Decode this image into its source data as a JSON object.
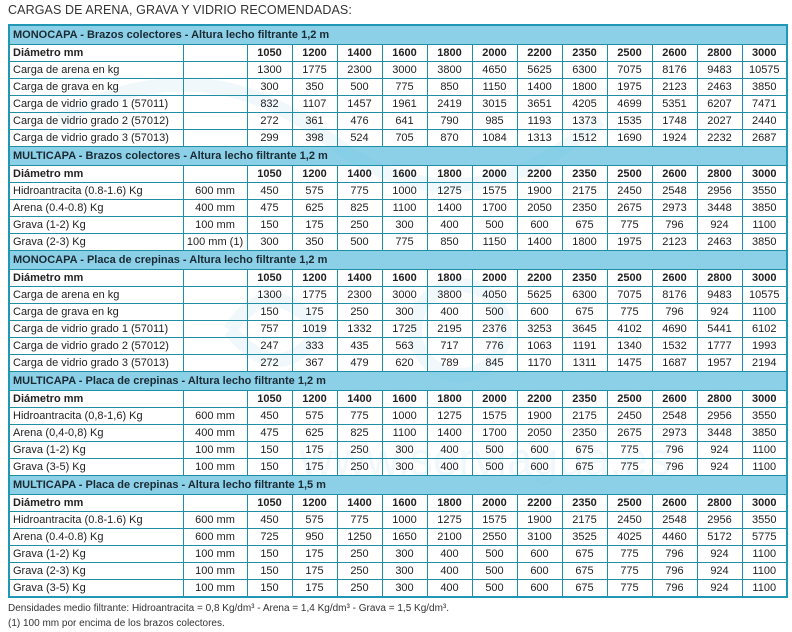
{
  "title": "CARGAS DE ARENA, GRAVA Y VIDRIO RECOMENDADAS:",
  "diameter_label": "Diámetro mm",
  "diameters": [
    "1050",
    "1200",
    "1400",
    "1600",
    "1800",
    "2000",
    "2200",
    "2350",
    "2500",
    "2600",
    "2800",
    "3000"
  ],
  "sections": [
    {
      "header": "MONOCAPA - Brazos colectores - Altura lecho filtrante 1,2 m",
      "rows": [
        {
          "label": "Carga de arena en kg",
          "sub": "",
          "values": [
            "1300",
            "1775",
            "2300",
            "3000",
            "3800",
            "4650",
            "5625",
            "6300",
            "7075",
            "8176",
            "9483",
            "10575"
          ]
        },
        {
          "label": "Carga de grava en kg",
          "sub": "",
          "values": [
            "300",
            "350",
            "500",
            "775",
            "850",
            "1150",
            "1400",
            "1800",
            "1975",
            "2123",
            "2463",
            "3850"
          ]
        },
        {
          "label": "Carga de vidrio grado 1 (57011)",
          "sub": "",
          "values": [
            "832",
            "1107",
            "1457",
            "1961",
            "2419",
            "3015",
            "3651",
            "4205",
            "4699",
            "5351",
            "6207",
            "7471"
          ]
        },
        {
          "label": "Carga de vidrio grado 2 (57012)",
          "sub": "",
          "values": [
            "272",
            "361",
            "476",
            "641",
            "790",
            "985",
            "1193",
            "1373",
            "1535",
            "1748",
            "2027",
            "2440"
          ]
        },
        {
          "label": "Carga de vidrio grado 3 (57013)",
          "sub": "",
          "values": [
            "299",
            "398",
            "524",
            "705",
            "870",
            "1084",
            "1313",
            "1512",
            "1690",
            "1924",
            "2232",
            "2687"
          ]
        }
      ]
    },
    {
      "header": "MULTICAPA - Brazos colectores - Altura lecho filtrante 1,2 m",
      "rows": [
        {
          "label": "Hidroantracita (0.8-1.6) Kg",
          "sub": "600 mm",
          "values": [
            "450",
            "575",
            "775",
            "1000",
            "1275",
            "1575",
            "1900",
            "2175",
            "2450",
            "2548",
            "2956",
            "3550"
          ]
        },
        {
          "label": "Arena (0.4-0.8) Kg",
          "sub": "400 mm",
          "values": [
            "475",
            "625",
            "825",
            "1100",
            "1400",
            "1700",
            "2050",
            "2350",
            "2675",
            "2973",
            "3448",
            "3850"
          ]
        },
        {
          "label": "Grava (1-2) Kg",
          "sub": "100 mm",
          "values": [
            "150",
            "175",
            "250",
            "300",
            "400",
            "500",
            "600",
            "675",
            "775",
            "796",
            "924",
            "1100"
          ]
        },
        {
          "label": "Grava (2-3) Kg",
          "sub": "100 mm (1)",
          "values": [
            "300",
            "350",
            "500",
            "775",
            "850",
            "1150",
            "1400",
            "1800",
            "1975",
            "2123",
            "2463",
            "3850"
          ]
        }
      ]
    },
    {
      "header": "MONOCAPA - Placa de crepinas - Altura lecho filtrante 1,2 m",
      "rows": [
        {
          "label": "Carga de arena en kg",
          "sub": "",
          "values": [
            "1300",
            "1775",
            "2300",
            "3000",
            "3800",
            "4050",
            "5625",
            "6300",
            "7075",
            "8176",
            "9483",
            "10575"
          ]
        },
        {
          "label": "Carga de grava en kg",
          "sub": "",
          "values": [
            "150",
            "175",
            "250",
            "300",
            "400",
            "500",
            "600",
            "675",
            "775",
            "796",
            "924",
            "1100"
          ]
        },
        {
          "label": "Carga de vidrio grado 1 (57011)",
          "sub": "",
          "values": [
            "757",
            "1019",
            "1332",
            "1725",
            "2195",
            "2376",
            "3253",
            "3645",
            "4102",
            "4690",
            "5441",
            "6102"
          ]
        },
        {
          "label": "Carga de vidrio grado 2 (57012)",
          "sub": "",
          "values": [
            "247",
            "333",
            "435",
            "563",
            "717",
            "776",
            "1063",
            "1191",
            "1340",
            "1532",
            "1777",
            "1993"
          ]
        },
        {
          "label": "Carga de vidrio grado 3 (57013)",
          "sub": "",
          "values": [
            "272",
            "367",
            "479",
            "620",
            "789",
            "845",
            "1170",
            "1311",
            "1475",
            "1687",
            "1957",
            "2194"
          ]
        }
      ]
    },
    {
      "header": "MULTICAPA - Placa de crepinas - Altura lecho filtrante 1,2 m",
      "rows": [
        {
          "label": "Hidroantracita (0,8-1,6) Kg",
          "sub": "600 mm",
          "values": [
            "450",
            "575",
            "775",
            "1000",
            "1275",
            "1575",
            "1900",
            "2175",
            "2450",
            "2548",
            "2956",
            "3550"
          ]
        },
        {
          "label": "Arena (0,4-0,8) Kg",
          "sub": "400 mm",
          "values": [
            "475",
            "625",
            "825",
            "1100",
            "1400",
            "1700",
            "2050",
            "2350",
            "2675",
            "2973",
            "3448",
            "3850"
          ]
        },
        {
          "label": "Grava (1-2) Kg",
          "sub": "100 mm",
          "values": [
            "150",
            "175",
            "250",
            "300",
            "400",
            "500",
            "600",
            "675",
            "775",
            "796",
            "924",
            "1100"
          ]
        },
        {
          "label": "Grava (3-5) Kg",
          "sub": "100 mm",
          "values": [
            "150",
            "175",
            "250",
            "300",
            "400",
            "500",
            "600",
            "675",
            "775",
            "796",
            "924",
            "1100"
          ]
        }
      ]
    },
    {
      "header": "MULTICAPA - Placa de crepinas - Altura lecho filtrante 1,5 m",
      "rows": [
        {
          "label": "Hidroantracita (0.8-1.6) Kg",
          "sub": "600 mm",
          "values": [
            "450",
            "575",
            "775",
            "1000",
            "1275",
            "1575",
            "1900",
            "2175",
            "2450",
            "2548",
            "2956",
            "3550"
          ]
        },
        {
          "label": "Arena (0.4-0.8) Kg",
          "sub": "600 mm",
          "values": [
            "725",
            "950",
            "1250",
            "1650",
            "2100",
            "2550",
            "3100",
            "3525",
            "4025",
            "4460",
            "5172",
            "5775"
          ]
        },
        {
          "label": "Grava (1-2) Kg",
          "sub": "100 mm",
          "values": [
            "150",
            "175",
            "250",
            "300",
            "400",
            "500",
            "600",
            "675",
            "775",
            "796",
            "924",
            "1100"
          ]
        },
        {
          "label": "Grava (2-3) Kg",
          "sub": "100 mm",
          "values": [
            "150",
            "175",
            "250",
            "300",
            "400",
            "500",
            "600",
            "675",
            "775",
            "796",
            "924",
            "1100"
          ]
        },
        {
          "label": "Grava (3-5) Kg",
          "sub": "100 mm",
          "values": [
            "150",
            "175",
            "250",
            "300",
            "400",
            "500",
            "600",
            "675",
            "775",
            "796",
            "924",
            "1100"
          ]
        }
      ]
    }
  ],
  "footnotes": {
    "densities": "Densidades medio filtrante: Hidroantracita = 0,8 Kg/dm³ - Arena = 1,4 Kg/dm³ - Grava = 1,5 Kg/dm³.",
    "note1": "(1) 100 mm por encima de los brazos colectores."
  },
  "watermark": "www.serviagua.es",
  "colors": {
    "header_bg": "#78c8e4",
    "border": "#1f8fa8"
  }
}
